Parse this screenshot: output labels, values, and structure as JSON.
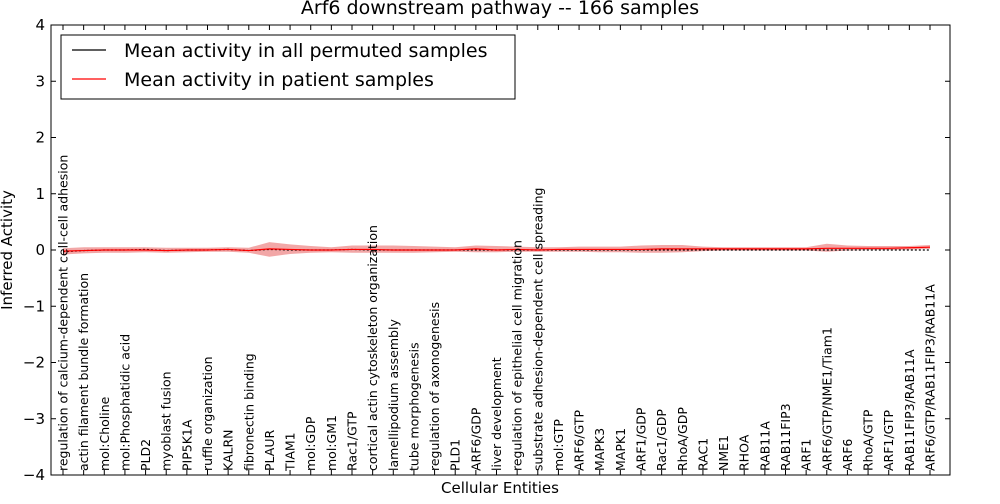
{
  "chart_data": {
    "type": "line",
    "title": "Arf6 downstream pathway -- 166 samples",
    "xlabel": "Cellular Entities",
    "ylabel": "Inferred Activity",
    "ylim": [
      -4,
      4
    ],
    "yticks": [
      -4,
      -3,
      -2,
      -1,
      0,
      1,
      2,
      3,
      4
    ],
    "ytick_labels": [
      "−4",
      "−3",
      "−2",
      "−1",
      "0",
      "1",
      "2",
      "3",
      "4"
    ],
    "grid": false,
    "legend_position": "top-left",
    "categories": [
      "regulation of calcium-dependent cell-cell adhesion",
      "actin filament bundle formation",
      "mol:Choline",
      "mol:Phosphatidic acid",
      "PLD2",
      "myoblast fusion",
      "PIP5K1A",
      "ruffle organization",
      "KALRN",
      "fibronectin binding",
      "PLAUR",
      "TIAM1",
      "mol:GDP",
      "mol:GM1",
      "Rac1/GTP",
      "cortical actin cytoskeleton organization",
      "lamellipodium assembly",
      "tube morphogenesis",
      "regulation of axonogenesis",
      "PLD1",
      "ARF6/GDP",
      "liver development",
      "regulation of epithelial cell migration",
      "substrate adhesion-dependent cell spreading",
      "mol:GTP",
      "ARF6/GTP",
      "MAPK3",
      "MAPK1",
      "ARF1/GDP",
      "Rac1/GDP",
      "RhoA/GDP",
      "RAC1",
      "NME1",
      "RHOA",
      "RAB11A",
      "RAB11FIP3",
      "ARF1",
      "ARF6/GTP/NME1/Tiam1",
      "ARF6",
      "RhoA/GTP",
      "ARF1/GTP",
      "RAB11FIP3/RAB11A",
      "ARF6/GTP/RAB11FIP3/RAB11A"
    ],
    "series": [
      {
        "name": "Mean activity in all permuted samples",
        "color": "#000000",
        "values": [
          -0.03,
          -0.01,
          0.0,
          0.0,
          0.01,
          -0.01,
          0.0,
          0.0,
          0.01,
          -0.01,
          0.01,
          0.0,
          0.0,
          0.0,
          0.01,
          0.0,
          0.0,
          0.0,
          0.0,
          0.0,
          0.0,
          0.0,
          0.0,
          0.0,
          0.0,
          0.0,
          0.0,
          0.0,
          0.0,
          0.0,
          0.0,
          0.0,
          0.0,
          0.0,
          0.0,
          0.0,
          0.0,
          0.0,
          0.0,
          0.0,
          0.0,
          0.0,
          0.0
        ]
      },
      {
        "name": "Mean activity in patient samples",
        "color": "#ff0000",
        "values": [
          -0.02,
          -0.01,
          0.0,
          0.0,
          0.0,
          -0.01,
          0.0,
          0.0,
          0.01,
          -0.01,
          0.02,
          0.01,
          0.0,
          0.0,
          0.01,
          0.01,
          0.0,
          0.0,
          0.0,
          0.0,
          0.02,
          0.0,
          0.01,
          0.0,
          0.01,
          0.01,
          0.01,
          0.01,
          0.01,
          0.02,
          0.02,
          0.02,
          0.02,
          0.02,
          0.02,
          0.02,
          0.02,
          0.03,
          0.03,
          0.03,
          0.03,
          0.04,
          0.05
        ],
        "band_upper": [
          0.03,
          0.05,
          0.05,
          0.05,
          0.05,
          0.04,
          0.04,
          0.04,
          0.05,
          0.04,
          0.14,
          0.1,
          0.07,
          0.05,
          0.08,
          0.08,
          0.08,
          0.07,
          0.06,
          0.05,
          0.08,
          0.07,
          0.06,
          0.05,
          0.05,
          0.06,
          0.06,
          0.06,
          0.08,
          0.09,
          0.09,
          0.06,
          0.05,
          0.05,
          0.05,
          0.05,
          0.05,
          0.11,
          0.08,
          0.07,
          0.07,
          0.07,
          0.09
        ],
        "band_lower": [
          -0.08,
          -0.06,
          -0.05,
          -0.05,
          -0.04,
          -0.05,
          -0.04,
          -0.03,
          -0.03,
          -0.05,
          -0.12,
          -0.07,
          -0.05,
          -0.04,
          -0.05,
          -0.05,
          -0.05,
          -0.05,
          -0.04,
          -0.03,
          -0.04,
          -0.04,
          -0.03,
          -0.03,
          -0.03,
          -0.03,
          -0.04,
          -0.04,
          -0.05,
          -0.05,
          -0.04,
          -0.02,
          -0.01,
          -0.01,
          -0.01,
          -0.01,
          -0.01,
          -0.03,
          -0.01,
          0.0,
          0.0,
          0.01,
          0.02
        ]
      }
    ]
  }
}
